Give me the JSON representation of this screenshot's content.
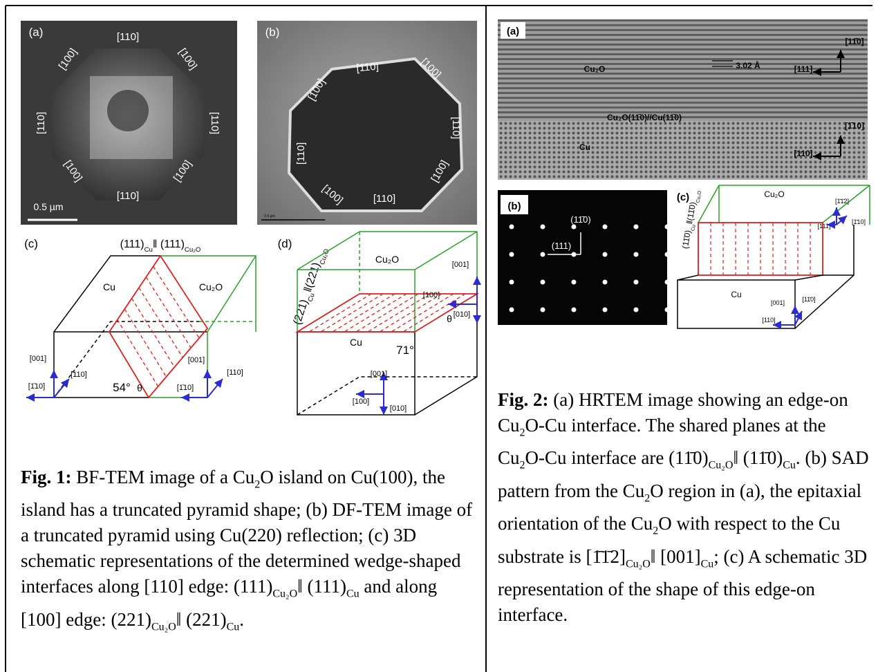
{
  "fig1": {
    "a": {
      "label": "(a)",
      "facets": [
        "[110]",
        "[100]",
        "[100]",
        "[110]",
        "[110]",
        "[100]",
        "[100]",
        "[110]"
      ],
      "scale": "0.5 µm"
    },
    "b": {
      "label": "(b)",
      "facets": [
        "[110]",
        "[100]",
        "[100]",
        "[110]",
        "[110]",
        "[100]",
        "[110]",
        "[100]"
      ],
      "scale": "0.5 µm"
    },
    "c": {
      "label": "(c)",
      "plane": [
        "(111)",
        {
          "sub": "Cu"
        },
        "‖ (111)",
        {
          "sub": "Cu₂O"
        }
      ],
      "phases": [
        "Cu",
        "Cu₂O"
      ],
      "axes": [
        "[001]",
        "[110]",
        "[1̄10]",
        "[001]",
        "[1̄10]",
        "[110]"
      ],
      "angle": "54°",
      "theta": "θ"
    },
    "d": {
      "label": "(d)",
      "plane": [
        "(221)",
        {
          "sub": "Cu"
        },
        "‖(221)",
        {
          "sub": "Cu₂O"
        }
      ],
      "phases": [
        "Cu₂O",
        "Cu"
      ],
      "axes": [
        "[001]",
        "[100]",
        "[010]",
        "[001]",
        "[100]",
        "[010]"
      ],
      "angle": "71°",
      "theta": "θ"
    },
    "caption": {
      "label": "Fig. 1:",
      "parts": [
        " BF-TEM image of a Cu",
        {
          "sub": "2"
        },
        "O island on Cu(100), the island has a truncated pyramid shape; (b) DF-TEM image of a truncated pyramid using Cu(220) reflection; (c) 3D schematic representations of the determined wedge-shaped interfaces along [110] edge: (111)",
        {
          "sub": "Cu₂O"
        },
        "‖ (111)",
        {
          "sub": "Cu"
        },
        " and along [100] edge: (221)",
        {
          "sub": "Cu₂O"
        },
        "‖ (221)",
        {
          "sub": "Cu"
        },
        "."
      ]
    }
  },
  "fig2": {
    "a": {
      "label": "(a)",
      "texts": [
        "Cu₂O",
        "3.02 Å",
        "[11̄0]",
        "[111]",
        "Cu₂O(11̄0)//Cu(11̄0)",
        "Cu",
        "[1̄10]",
        "[110]"
      ]
    },
    "b": {
      "label": "(b)",
      "spots": [
        "(11̄0)",
        "(111)"
      ]
    },
    "c": {
      "label": "(c)",
      "plane": [
        "(11̄0)",
        {
          "sub": "Cu"
        },
        "‖(11̄0)",
        {
          "sub": "Cu₂O"
        }
      ],
      "texts": [
        "Cu₂O",
        "[1̄1̄2]",
        "[111]",
        "[1̄10]",
        "Cu",
        "[001]",
        "[11̄0]",
        "[110]"
      ]
    },
    "caption": {
      "label": "Fig. 2:",
      "parts": [
        " (a) HRTEM image showing an edge-on Cu",
        {
          "sub": "2"
        },
        "O-Cu interface. The shared planes at the Cu",
        {
          "sub": "2"
        },
        "O-Cu interface are (11̄0)",
        {
          "sub": "Cu₂O"
        },
        "‖ (11̄0)",
        {
          "sub": "Cu"
        },
        ".  (b) SAD pattern from the Cu",
        {
          "sub": "2"
        },
        "O region in (a), the epitaxial orientation of the Cu",
        {
          "sub": "2"
        },
        "O with respect to the Cu substrate is [1̄1̄2]",
        {
          "sub": "Cu₂O"
        },
        "‖ [001]",
        {
          "sub": "Cu"
        },
        "; (c) A schematic 3D representation of the shape of this edge-on interface."
      ]
    }
  }
}
